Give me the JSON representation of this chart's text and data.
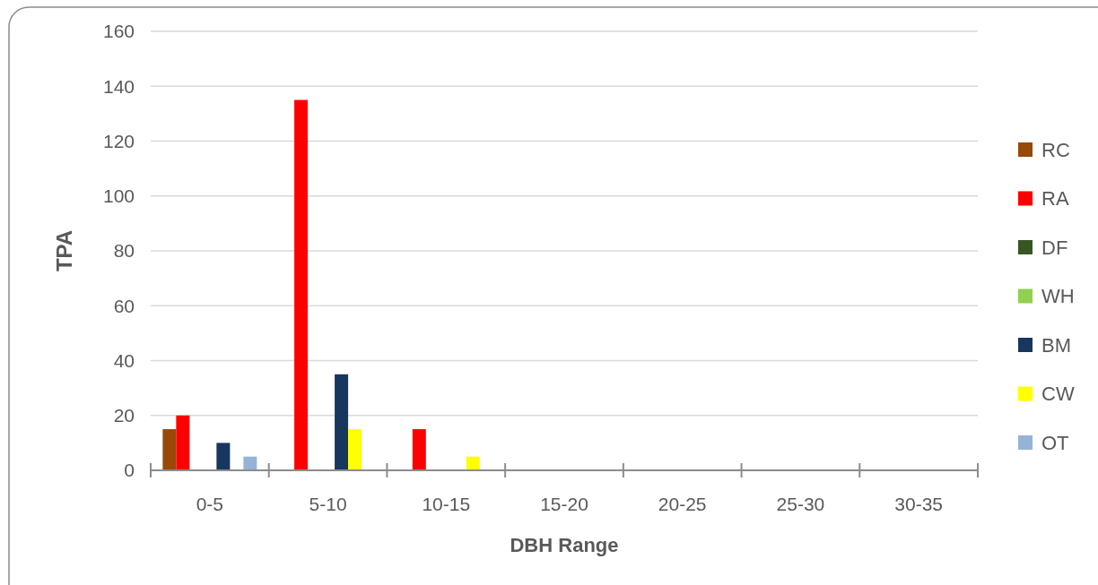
{
  "chart_data": {
    "type": "bar",
    "xlabel": "DBH Range",
    "ylabel": "TPA",
    "categories": [
      "0-5",
      "5-10",
      "10-15",
      "15-20",
      "20-25",
      "25-30",
      "30-35"
    ],
    "series": [
      {
        "name": "RC",
        "color": "#984807",
        "values": [
          15,
          0,
          0,
          0,
          0,
          0,
          0
        ]
      },
      {
        "name": "RA",
        "color": "#ff0000",
        "values": [
          20,
          135,
          15,
          0,
          0,
          0,
          0
        ]
      },
      {
        "name": "DF",
        "color": "#375623",
        "values": [
          0,
          0,
          0,
          0,
          0,
          0,
          0
        ]
      },
      {
        "name": "WH",
        "color": "#92d050",
        "values": [
          0,
          0,
          0,
          0,
          0,
          0,
          0
        ]
      },
      {
        "name": "BM",
        "color": "#17375e",
        "values": [
          10,
          35,
          0,
          0,
          0,
          0,
          0
        ]
      },
      {
        "name": "CW",
        "color": "#ffff00",
        "values": [
          0,
          15,
          5,
          0,
          0,
          0,
          0
        ]
      },
      {
        "name": "OT",
        "color": "#95b3d7",
        "values": [
          5,
          0,
          0,
          0,
          0,
          0,
          0
        ]
      }
    ],
    "ylim": [
      0,
      160
    ],
    "yticks": [
      0,
      20,
      40,
      60,
      80,
      100,
      120,
      140,
      160
    ],
    "grid": "y",
    "legend": "right"
  }
}
